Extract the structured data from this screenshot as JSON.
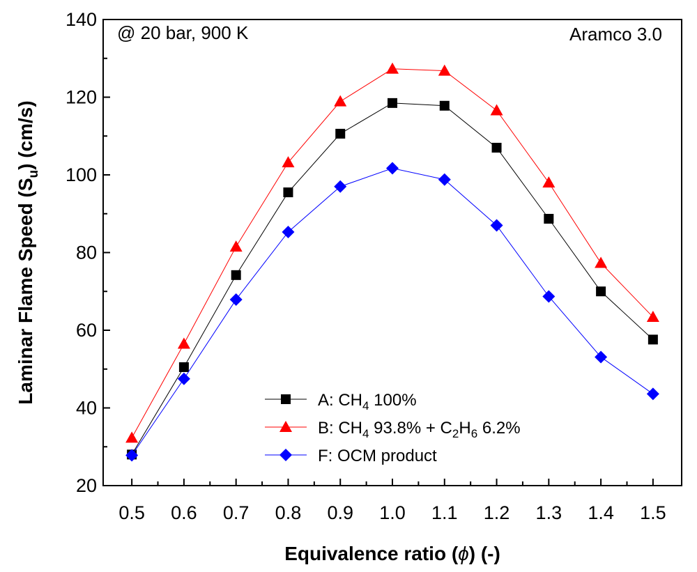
{
  "chart_data": {
    "type": "line",
    "title": "",
    "xlabel": "Equivalence ratio (ϕ) (-)",
    "ylabel": "Laminar Flame Speed (S_u) (cm/s)",
    "ylabel_parts": {
      "main": "Laminar Flame Speed (S",
      "sub": "u",
      "end": ") (cm/s)"
    },
    "xlabel_parts": {
      "pre": "Equivalence ratio (",
      "phi": "ϕ",
      "post": ") (-)"
    },
    "xlim": [
      0.445,
      1.555
    ],
    "ylim": [
      20,
      140
    ],
    "x": [
      0.5,
      0.6,
      0.7,
      0.8,
      0.9,
      1.0,
      1.1,
      1.2,
      1.3,
      1.4,
      1.5
    ],
    "x_tick_labels": [
      "0.5",
      "0.6",
      "0.7",
      "0.8",
      "0.9",
      "1.0",
      "1.1",
      "1.2",
      "1.3",
      "1.4",
      "1.5"
    ],
    "y_ticks": [
      20,
      40,
      60,
      80,
      100,
      120,
      140
    ],
    "y_tick_labels": [
      "20",
      "40",
      "60",
      "80",
      "100",
      "120",
      "140"
    ],
    "grid": false,
    "legend_position": "lower-center",
    "annotations": {
      "condition": "@ 20 bar, 900 K",
      "mechanism": "Aramco 3.0"
    },
    "series": [
      {
        "name": "A: CH4 100%",
        "label_parts": [
          [
            "A: CH",
            ""
          ],
          [
            "4",
            "sub"
          ],
          [
            " 100%",
            ""
          ]
        ],
        "color": "#000000",
        "marker": "square",
        "values": [
          28.0,
          50.5,
          74.2,
          95.5,
          110.6,
          118.5,
          117.8,
          107.0,
          88.7,
          70.0,
          57.6
        ]
      },
      {
        "name": "B: CH4 93.8% + C2H6 6.2%",
        "label_parts": [
          [
            "B: CH",
            ""
          ],
          [
            "4",
            "sub"
          ],
          [
            " 93.8% + C",
            ""
          ],
          [
            "2",
            "sub"
          ],
          [
            "H",
            ""
          ],
          [
            "6",
            "sub"
          ],
          [
            " 6.2%",
            ""
          ]
        ],
        "color": "#ff0000",
        "marker": "triangle",
        "values": [
          32.3,
          56.5,
          81.5,
          103.2,
          118.9,
          127.3,
          126.8,
          116.6,
          98.0,
          77.3,
          63.4
        ]
      },
      {
        "name": "F: OCM product",
        "label_parts": [
          [
            "F: OCM product",
            ""
          ]
        ],
        "color": "#0000ff",
        "marker": "diamond",
        "values": [
          27.8,
          47.5,
          67.9,
          85.3,
          97.0,
          101.7,
          98.8,
          87.0,
          68.7,
          53.1,
          43.6
        ]
      }
    ]
  }
}
